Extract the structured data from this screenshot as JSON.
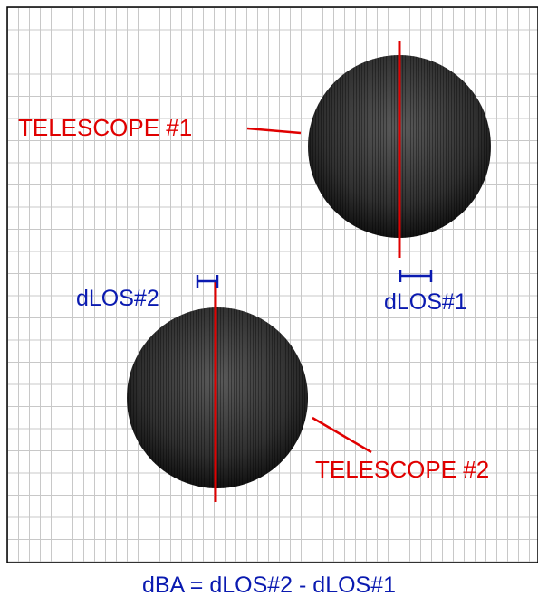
{
  "labels": {
    "telescope_1": "TELESCOPE #1",
    "telescope_2": "TELESCOPE #2",
    "dlos_1": "dLOS#1",
    "dlos_2": "dLOS#2"
  },
  "caption": "dBA = dLOS#2 - dLOS#1"
}
